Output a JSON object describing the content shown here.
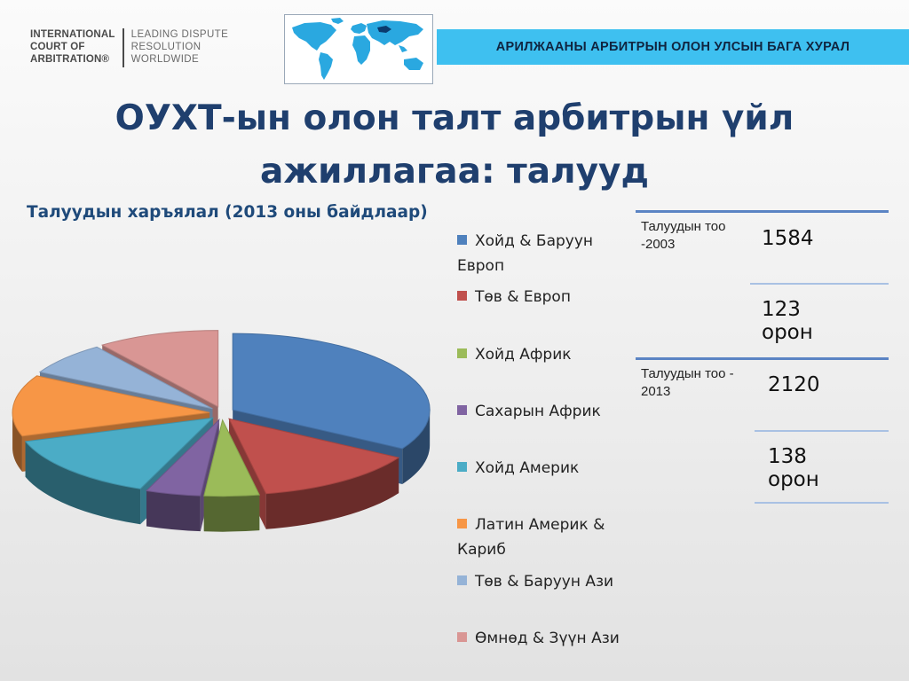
{
  "logo": {
    "left_lines": [
      "INTERNATIONAL",
      "COURT OF",
      "ARBITRATION®"
    ],
    "right_lines": [
      "LEADING DISPUTE",
      "RESOLUTION",
      "WORLDWIDE"
    ]
  },
  "map_icon": "world-map-icon",
  "banner": {
    "text": "АРИЛЖААНЫ АРБИТРЫН ОЛОН УЛСЫН БАГА ХУРАЛ",
    "color": "#3ec0f0"
  },
  "title": "ОУХТ-ын олон талт арбитрын үйл ажиллагаа: талууд",
  "subtitle": "Талуудын харъялал (2013 оны байдлаар)",
  "chart_data": {
    "type": "pie",
    "title": "",
    "legend_position": "right",
    "series": [
      {
        "name": "Хойд & Баруун Европ",
        "value": 33.5,
        "color": "#4f81bd"
      },
      {
        "name": "Төв & Европ",
        "value": 13.5,
        "color": "#c0504d"
      },
      {
        "name": "Хойд Африк",
        "value": 4.5,
        "color": "#9bbb59"
      },
      {
        "name": "Сахарын Африк",
        "value": 4.5,
        "color": "#8064a2"
      },
      {
        "name": "Хойд Америк",
        "value": 14.0,
        "color": "#4bacc6"
      },
      {
        "name": "Латин Америк & Кариб",
        "value": 13.0,
        "color": "#f79646"
      },
      {
        "name": "Төв & Баруун Ази",
        "value": 7.0,
        "color": "#95b3d7"
      },
      {
        "name": "Өмнөд & Зүүн Ази",
        "value": 10.0,
        "color": "#d99694"
      }
    ]
  },
  "stats": [
    {
      "label": "Талуудын тоо -2003",
      "value": "1584"
    },
    {
      "label": "",
      "value": "123 орон"
    },
    {
      "label": "Талуудын тоо - 2013",
      "value": "2120"
    },
    {
      "label": "",
      "value": "138 орон"
    }
  ]
}
